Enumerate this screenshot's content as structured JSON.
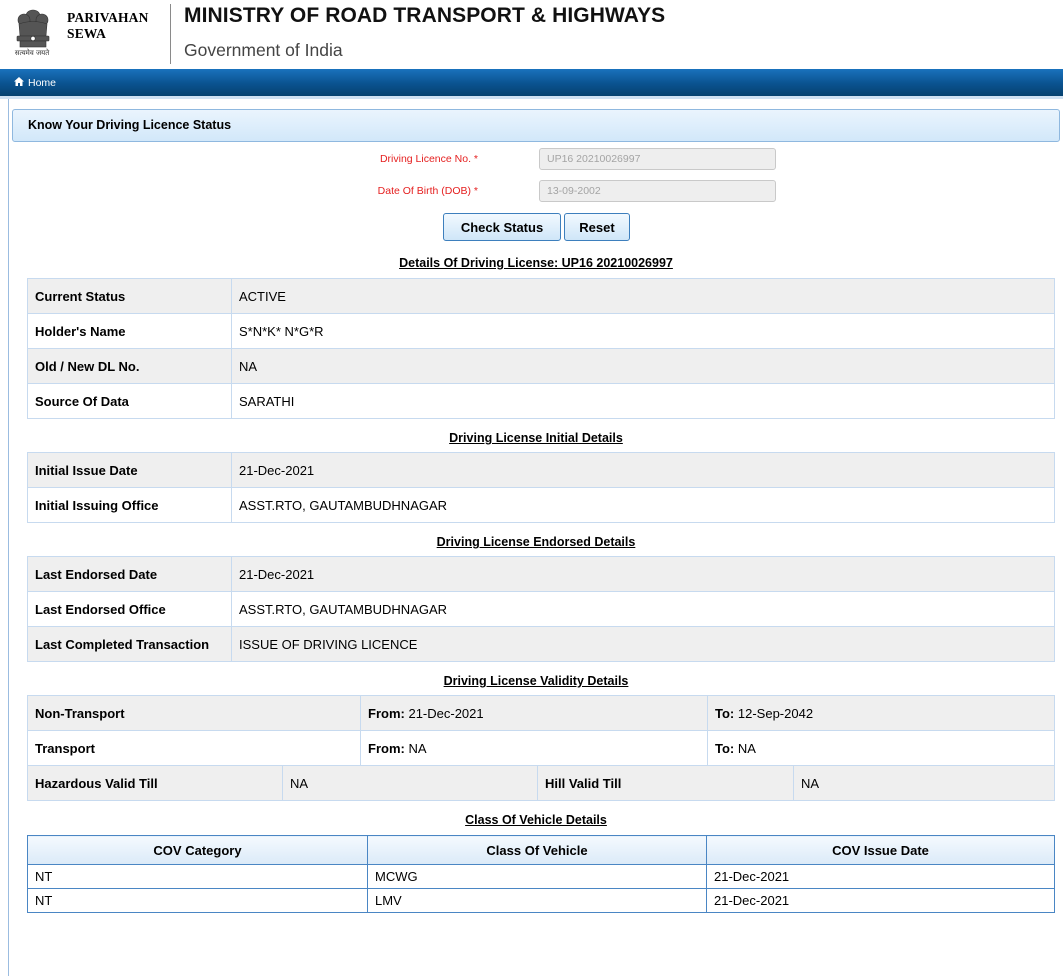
{
  "header": {
    "brand_line1": "PARIVAHAN",
    "brand_line2": "SEWA",
    "emblem_motto": "सत्यमेव जयते",
    "ministry_title": "MINISTRY OF ROAD TRANSPORT & HIGHWAYS",
    "govt_subtitle": "Government of India"
  },
  "nav": {
    "home_label": "Home",
    "home_icon": "home-icon"
  },
  "panel_title": "Know Your Driving Licence Status",
  "form": {
    "dl_label": "Driving Licence No. *",
    "dl_value": "UP16 20210026997",
    "dob_label": "Date Of Birth (DOB) *",
    "dob_value": "13-09-2002",
    "check_status_label": "Check Status",
    "reset_label": "Reset"
  },
  "details": {
    "title": "Details Of Driving License: UP16 20210026997",
    "rows": [
      {
        "label": "Current Status",
        "value": "ACTIVE"
      },
      {
        "label": "Holder's Name",
        "value": "S*N*K* N*G*R"
      },
      {
        "label": "Old / New DL No.",
        "value": "NA"
      },
      {
        "label": "Source Of Data",
        "value": "SARATHI"
      }
    ]
  },
  "initial": {
    "title": "Driving License Initial Details",
    "rows": [
      {
        "label": "Initial Issue Date",
        "value": "21-Dec-2021"
      },
      {
        "label": "Initial Issuing Office",
        "value": "ASST.RTO, GAUTAMBUDHNAGAR"
      }
    ]
  },
  "endorsed": {
    "title": "Driving License Endorsed Details",
    "rows": [
      {
        "label": "Last Endorsed Date",
        "value": "21-Dec-2021"
      },
      {
        "label": "Last Endorsed Office",
        "value": "ASST.RTO, GAUTAMBUDHNAGAR"
      },
      {
        "label": "Last Completed Transaction",
        "value": "ISSUE OF DRIVING LICENCE"
      }
    ]
  },
  "validity": {
    "title": "Driving License Validity Details",
    "from_label": "From:",
    "to_label": "To:",
    "rows": [
      {
        "label": "Non-Transport",
        "from": "21-Dec-2021",
        "to": "12-Sep-2042"
      },
      {
        "label": "Transport",
        "from": "NA",
        "to": "NA"
      }
    ],
    "hazardous_label": "Hazardous Valid Till",
    "hazardous_value": "NA",
    "hill_label": "Hill Valid Till",
    "hill_value": "NA"
  },
  "cov": {
    "title": "Class Of Vehicle Details",
    "headers": [
      "COV Category",
      "Class Of Vehicle",
      "COV Issue Date"
    ],
    "rows": [
      [
        "NT",
        "MCWG",
        "21-Dec-2021"
      ],
      [
        "NT",
        "LMV",
        "21-Dec-2021"
      ]
    ]
  },
  "colors": {
    "nav_bar": "#0a528f",
    "required_label": "#e52020",
    "panel_border": "#8fb8df",
    "table_border": "#4a86c4"
  }
}
